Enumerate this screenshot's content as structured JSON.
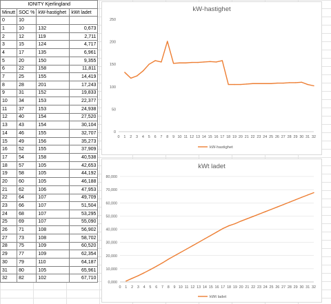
{
  "table": {
    "title": "IONITY Kjerlingland",
    "headers": [
      "Minutt",
      "SOC %",
      "kW-hastighet",
      "kWt ladet"
    ],
    "rows": [
      [
        "0",
        "10",
        "",
        ""
      ],
      [
        "1",
        "10",
        "132",
        "0,673"
      ],
      [
        "2",
        "12",
        "119",
        "2,711"
      ],
      [
        "3",
        "15",
        "124",
        "4,717"
      ],
      [
        "4",
        "17",
        "135",
        "6,961"
      ],
      [
        "5",
        "20",
        "150",
        "9,355"
      ],
      [
        "6",
        "22",
        "158",
        "11,811"
      ],
      [
        "7",
        "25",
        "155",
        "14,419"
      ],
      [
        "8",
        "28",
        "201",
        "17,243"
      ],
      [
        "9",
        "31",
        "152",
        "19,833"
      ],
      [
        "10",
        "34",
        "153",
        "22,377"
      ],
      [
        "11",
        "37",
        "153",
        "24,938"
      ],
      [
        "12",
        "40",
        "154",
        "27,520"
      ],
      [
        "13",
        "43",
        "154",
        "30,104"
      ],
      [
        "14",
        "46",
        "155",
        "32,707"
      ],
      [
        "15",
        "49",
        "156",
        "35,273"
      ],
      [
        "16",
        "52",
        "155",
        "37,909"
      ],
      [
        "17",
        "54",
        "158",
        "40,538"
      ],
      [
        "18",
        "57",
        "105",
        "42,653"
      ],
      [
        "19",
        "58",
        "105",
        "44,192"
      ],
      [
        "20",
        "60",
        "105",
        "46,188"
      ],
      [
        "21",
        "62",
        "106",
        "47,953"
      ],
      [
        "22",
        "64",
        "107",
        "49,709"
      ],
      [
        "23",
        "66",
        "107",
        "51,504"
      ],
      [
        "24",
        "68",
        "107",
        "53,295"
      ],
      [
        "25",
        "69",
        "107",
        "55,090"
      ],
      [
        "26",
        "71",
        "108",
        "56,902"
      ],
      [
        "27",
        "73",
        "108",
        "58,702"
      ],
      [
        "28",
        "75",
        "109",
        "60,520"
      ],
      [
        "29",
        "77",
        "109",
        "62,354"
      ],
      [
        "30",
        "79",
        "110",
        "64,187"
      ],
      [
        "31",
        "80",
        "105",
        "65,961"
      ],
      [
        "32",
        "82",
        "102",
        "67,710"
      ]
    ]
  },
  "colors": {
    "line": "#ed7d31",
    "grid": "#d9d9d9",
    "text": "#595959"
  },
  "chart_data": [
    {
      "type": "line",
      "title": "kW-hastighet",
      "x": [
        1,
        2,
        3,
        4,
        5,
        6,
        7,
        8,
        9,
        10,
        11,
        12,
        13,
        14,
        15,
        16,
        17,
        18,
        19,
        20,
        21,
        22,
        23,
        24,
        25,
        26,
        27,
        28,
        29,
        30,
        31,
        32
      ],
      "x_ticks": [
        "0",
        "1",
        "2",
        "3",
        "4",
        "5",
        "6",
        "7",
        "8",
        "9",
        "10",
        "11",
        "12",
        "13",
        "14",
        "15",
        "16",
        "17",
        "18",
        "19",
        "20",
        "21",
        "22",
        "23",
        "24",
        "25",
        "26",
        "27",
        "28",
        "29",
        "30",
        "31",
        "32"
      ],
      "series": [
        {
          "name": "kW-hastighet",
          "values": [
            132,
            119,
            124,
            135,
            150,
            158,
            155,
            201,
            152,
            153,
            153,
            154,
            154,
            155,
            156,
            155,
            158,
            105,
            105,
            105,
            106,
            107,
            107,
            107,
            107,
            108,
            108,
            109,
            109,
            110,
            105,
            102
          ]
        }
      ],
      "ylim": [
        0,
        250
      ],
      "y_ticks": [
        "0",
        "50",
        "100",
        "150",
        "200",
        "250"
      ],
      "grid": false,
      "legend": "bottom"
    },
    {
      "type": "line",
      "title": "kWt ladet",
      "x": [
        1,
        2,
        3,
        4,
        5,
        6,
        7,
        8,
        9,
        10,
        11,
        12,
        13,
        14,
        15,
        16,
        17,
        18,
        19,
        20,
        21,
        22,
        23,
        24,
        25,
        26,
        27,
        28,
        29,
        30,
        31,
        32
      ],
      "x_ticks": [
        "0",
        "1",
        "2",
        "3",
        "4",
        "5",
        "6",
        "7",
        "8",
        "9",
        "10",
        "11",
        "12",
        "13",
        "14",
        "15",
        "16",
        "17",
        "18",
        "19",
        "20",
        "21",
        "22",
        "23",
        "24",
        "25",
        "26",
        "27",
        "28",
        "29",
        "30",
        "31",
        "32"
      ],
      "series": [
        {
          "name": "kWt ladet",
          "values": [
            0.673,
            2.711,
            4.717,
            6.961,
            9.355,
            11.811,
            14.419,
            17.243,
            19.833,
            22.377,
            24.938,
            27.52,
            30.104,
            32.707,
            35.273,
            37.909,
            40.538,
            42.653,
            44.192,
            46.188,
            47.953,
            49.709,
            51.504,
            53.295,
            55.09,
            56.902,
            58.702,
            60.52,
            62.354,
            64.187,
            65.961,
            67.71
          ]
        }
      ],
      "ylim": [
        0,
        80
      ],
      "y_ticks": [
        "0,000",
        "10,000",
        "20,000",
        "30,000",
        "40,000",
        "50,000",
        "60,000",
        "70,000",
        "80,000"
      ],
      "grid": true,
      "legend": "bottom"
    }
  ]
}
